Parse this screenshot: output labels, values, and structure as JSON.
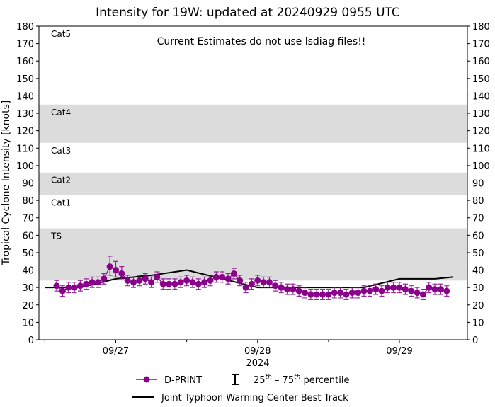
{
  "chart_data": {
    "type": "scatter",
    "title": "Intensity for 19W: updated at 20240929 0955 UTC",
    "annotation": "Current Estimates do not use lsdiag files!!",
    "ylabel": "Tropical Cyclone Intensity [knots]",
    "xlabel": "2024",
    "ylim": [
      0,
      180
    ],
    "yticks": [
      0,
      10,
      20,
      30,
      40,
      50,
      60,
      70,
      80,
      90,
      100,
      110,
      120,
      130,
      140,
      150,
      160,
      170,
      180
    ],
    "xlim": [
      "2024-09-26 11:00",
      "2024-09-29 11:30"
    ],
    "xticks": [
      {
        "t": "2024-09-27 00:00",
        "label": "09/27"
      },
      {
        "t": "2024-09-28 00:00",
        "label": "09/28"
      },
      {
        "t": "2024-09-29 00:00",
        "label": "09/29"
      }
    ],
    "grid": false,
    "legend_position": "bottom",
    "colors": {
      "dprint": "#8b008b",
      "best_track": "#000000",
      "band": "#dcdcdc"
    },
    "categories": [
      {
        "label": "TS",
        "min": 34,
        "max": 64,
        "shaded": true
      },
      {
        "label": "Cat1",
        "min": 64,
        "max": 83,
        "shaded": false
      },
      {
        "label": "Cat2",
        "min": 83,
        "max": 96,
        "shaded": true
      },
      {
        "label": "Cat3",
        "min": 96,
        "max": 113,
        "shaded": false
      },
      {
        "label": "Cat4",
        "min": 113,
        "max": 135,
        "shaded": true
      },
      {
        "label": "Cat5",
        "min": 135,
        "max": 180,
        "shaded": false
      }
    ],
    "series": [
      {
        "name": "D-PRINT",
        "kind": "points-with-errorbars",
        "x": [
          "2024-09-26 14:00",
          "2024-09-26 15:00",
          "2024-09-26 16:00",
          "2024-09-26 17:00",
          "2024-09-26 18:00",
          "2024-09-26 19:00",
          "2024-09-26 20:00",
          "2024-09-26 21:00",
          "2024-09-26 22:00",
          "2024-09-26 23:00",
          "2024-09-27 00:00",
          "2024-09-27 01:00",
          "2024-09-27 02:00",
          "2024-09-27 03:00",
          "2024-09-27 04:00",
          "2024-09-27 05:00",
          "2024-09-27 06:00",
          "2024-09-27 07:00",
          "2024-09-27 08:00",
          "2024-09-27 09:00",
          "2024-09-27 10:00",
          "2024-09-27 11:00",
          "2024-09-27 12:00",
          "2024-09-27 13:00",
          "2024-09-27 14:00",
          "2024-09-27 15:00",
          "2024-09-27 16:00",
          "2024-09-27 17:00",
          "2024-09-27 18:00",
          "2024-09-27 19:00",
          "2024-09-27 20:00",
          "2024-09-27 21:00",
          "2024-09-27 22:00",
          "2024-09-27 23:00",
          "2024-09-28 00:00",
          "2024-09-28 01:00",
          "2024-09-28 02:00",
          "2024-09-28 03:00",
          "2024-09-28 04:00",
          "2024-09-28 05:00",
          "2024-09-28 06:00",
          "2024-09-28 07:00",
          "2024-09-28 08:00",
          "2024-09-28 09:00",
          "2024-09-28 10:00",
          "2024-09-28 11:00",
          "2024-09-28 12:00",
          "2024-09-28 13:00",
          "2024-09-28 14:00",
          "2024-09-28 15:00",
          "2024-09-28 16:00",
          "2024-09-28 17:00",
          "2024-09-28 18:00",
          "2024-09-28 19:00",
          "2024-09-28 20:00",
          "2024-09-28 21:00",
          "2024-09-28 22:00",
          "2024-09-28 23:00",
          "2024-09-29 00:00",
          "2024-09-29 01:00",
          "2024-09-29 02:00",
          "2024-09-29 03:00",
          "2024-09-29 04:00",
          "2024-09-29 05:00",
          "2024-09-29 06:00",
          "2024-09-29 07:00",
          "2024-09-29 08:00"
        ],
        "values": [
          31,
          28,
          30,
          30,
          31,
          32,
          33,
          33,
          35,
          42,
          40,
          38,
          34,
          33,
          34,
          35,
          33,
          36,
          32,
          32,
          32,
          33,
          34,
          33,
          32,
          33,
          34,
          36,
          36,
          35,
          38,
          34,
          30,
          32,
          34,
          33,
          33,
          31,
          30,
          29,
          29,
          28,
          27,
          26,
          26,
          26,
          26,
          27,
          27,
          26,
          27,
          27,
          28,
          28,
          29,
          28,
          30,
          30,
          30,
          29,
          28,
          27,
          26,
          30,
          29,
          29,
          28
        ],
        "p25": [
          28,
          25,
          27,
          27,
          28,
          29,
          30,
          30,
          32,
          37,
          36,
          35,
          31,
          30,
          31,
          32,
          30,
          33,
          29,
          29,
          29,
          30,
          31,
          30,
          29,
          30,
          31,
          33,
          33,
          32,
          35,
          31,
          27,
          29,
          31,
          30,
          30,
          28,
          27,
          26,
          26,
          25,
          24,
          23,
          23,
          23,
          23,
          24,
          24,
          23,
          24,
          24,
          25,
          25,
          26,
          25,
          27,
          27,
          27,
          26,
          25,
          24,
          23,
          27,
          26,
          26,
          25
        ],
        "p75": [
          34,
          31,
          33,
          33,
          34,
          35,
          36,
          36,
          38,
          48,
          45,
          42,
          37,
          36,
          37,
          38,
          36,
          39,
          35,
          35,
          35,
          36,
          37,
          36,
          35,
          36,
          37,
          39,
          39,
          38,
          41,
          37,
          33,
          35,
          37,
          36,
          36,
          34,
          33,
          32,
          32,
          31,
          30,
          29,
          29,
          29,
          29,
          30,
          30,
          29,
          30,
          30,
          31,
          31,
          32,
          31,
          33,
          33,
          33,
          32,
          31,
          30,
          29,
          33,
          32,
          32,
          31
        ]
      },
      {
        "name": "Joint Typhoon Warning Center Best Track",
        "kind": "line",
        "x": [
          "2024-09-26 12:00",
          "2024-09-26 18:00",
          "2024-09-27 00:00",
          "2024-09-27 06:00",
          "2024-09-27 12:00",
          "2024-09-27 18:00",
          "2024-09-28 00:00",
          "2024-09-28 06:00",
          "2024-09-28 12:00",
          "2024-09-28 18:00",
          "2024-09-29 00:00",
          "2024-09-29 06:00",
          "2024-09-29 09:00"
        ],
        "values": [
          30,
          30,
          35,
          37,
          40,
          35,
          30,
          30,
          30,
          30,
          35,
          35,
          36
        ]
      }
    ],
    "legend": {
      "dprint": "D-PRINT",
      "percentile_prefix_a": "25",
      "percentile_sup_a": "th",
      "percentile_mid": " – 75",
      "percentile_sup_b": "th",
      "percentile_suffix": " percentile",
      "best_track": "Joint Typhoon Warning Center Best Track"
    }
  }
}
